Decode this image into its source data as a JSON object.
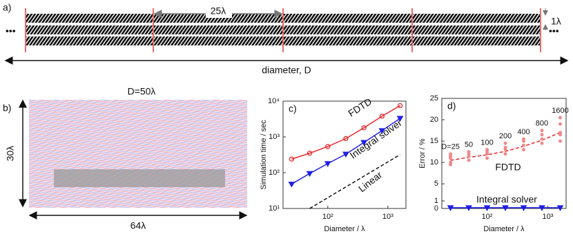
{
  "panel_a": {
    "label": "a)",
    "spacing": "25λ",
    "width": "1λ",
    "axis_label": "diameter, D"
  },
  "panel_b": {
    "label": "b)",
    "title": "D=50λ",
    "height": "30λ",
    "width": "64λ"
  },
  "chart_data": [
    {
      "type": "line",
      "label": "c)",
      "x_label": "Diameter / λ",
      "y_label": "Simulation time / sec",
      "xscale": "log",
      "yscale": "log",
      "xlim": [
        18,
        2000
      ],
      "ylim": [
        10,
        10000
      ],
      "xticks": [
        {
          "value": 100,
          "label": "10²"
        },
        {
          "value": 1000,
          "label": "10³"
        }
      ],
      "yticks": [
        {
          "value": 10,
          "label": "10¹"
        },
        {
          "value": 100,
          "label": "10²"
        },
        {
          "value": 1000,
          "label": "10³"
        },
        {
          "value": 10000,
          "label": "10⁴"
        }
      ],
      "x": [
        25,
        50,
        100,
        200,
        400,
        800,
        1600
      ],
      "series": [
        {
          "name": "FDTD",
          "color": "#e8262a",
          "marker": "circle",
          "values": [
            240,
            350,
            540,
            900,
            1800,
            3800,
            7500
          ]
        },
        {
          "name": "Integral solver",
          "color": "#1f1fe6",
          "marker": "triangle",
          "values": [
            48,
            95,
            180,
            330,
            700,
            1500,
            3300
          ]
        },
        {
          "name": "Linear",
          "color": "#111111",
          "style": "dashed",
          "values": [
            null,
            10,
            20,
            40,
            80,
            160,
            320
          ]
        }
      ]
    },
    {
      "type": "scatter",
      "label": "d)",
      "x_label": "Diameter / λ",
      "y_label": "Error / %",
      "xscale": "log",
      "xlim": [
        18,
        2000
      ],
      "ylim": [
        0,
        25
      ],
      "xticks": [
        {
          "value": 100,
          "label": "10²"
        },
        {
          "value": 1000,
          "label": "10³"
        }
      ],
      "yticks": [
        0,
        1,
        5,
        10,
        15,
        20,
        25
      ],
      "annotations": [
        "D=25",
        "50",
        "100",
        "200",
        "400",
        "800",
        "1600"
      ],
      "trend": {
        "color": "#e8262a",
        "x": [
          25,
          50,
          100,
          200,
          400,
          800,
          1600
        ],
        "values": [
          10.5,
          11.2,
          11.8,
          12.6,
          13.8,
          15.2,
          17
        ]
      },
      "series": [
        {
          "name": "FDTD",
          "color": "#f08a8a",
          "x": [
            25,
            25,
            25,
            25,
            25,
            50,
            50,
            50,
            50,
            100,
            100,
            100,
            100,
            200,
            200,
            200,
            200,
            400,
            400,
            400,
            400,
            800,
            800,
            800,
            800,
            1600,
            1600,
            1600,
            1600,
            1600
          ],
          "values": [
            9.5,
            10,
            11,
            11.5,
            12,
            10.5,
            11.5,
            12,
            12.5,
            11,
            12,
            12.5,
            13,
            12,
            13,
            13.5,
            14.5,
            13,
            14,
            15,
            15.5,
            14.5,
            15.5,
            16.5,
            17.5,
            15,
            16.5,
            17,
            19,
            20.5
          ]
        },
        {
          "name": "Integral solver",
          "color": "#1f1fe6",
          "x": [
            25,
            50,
            100,
            200,
            400,
            800,
            1600
          ],
          "values": [
            0.1,
            0.1,
            0.1,
            0.1,
            0.1,
            0.1,
            0.1
          ]
        }
      ]
    }
  ]
}
